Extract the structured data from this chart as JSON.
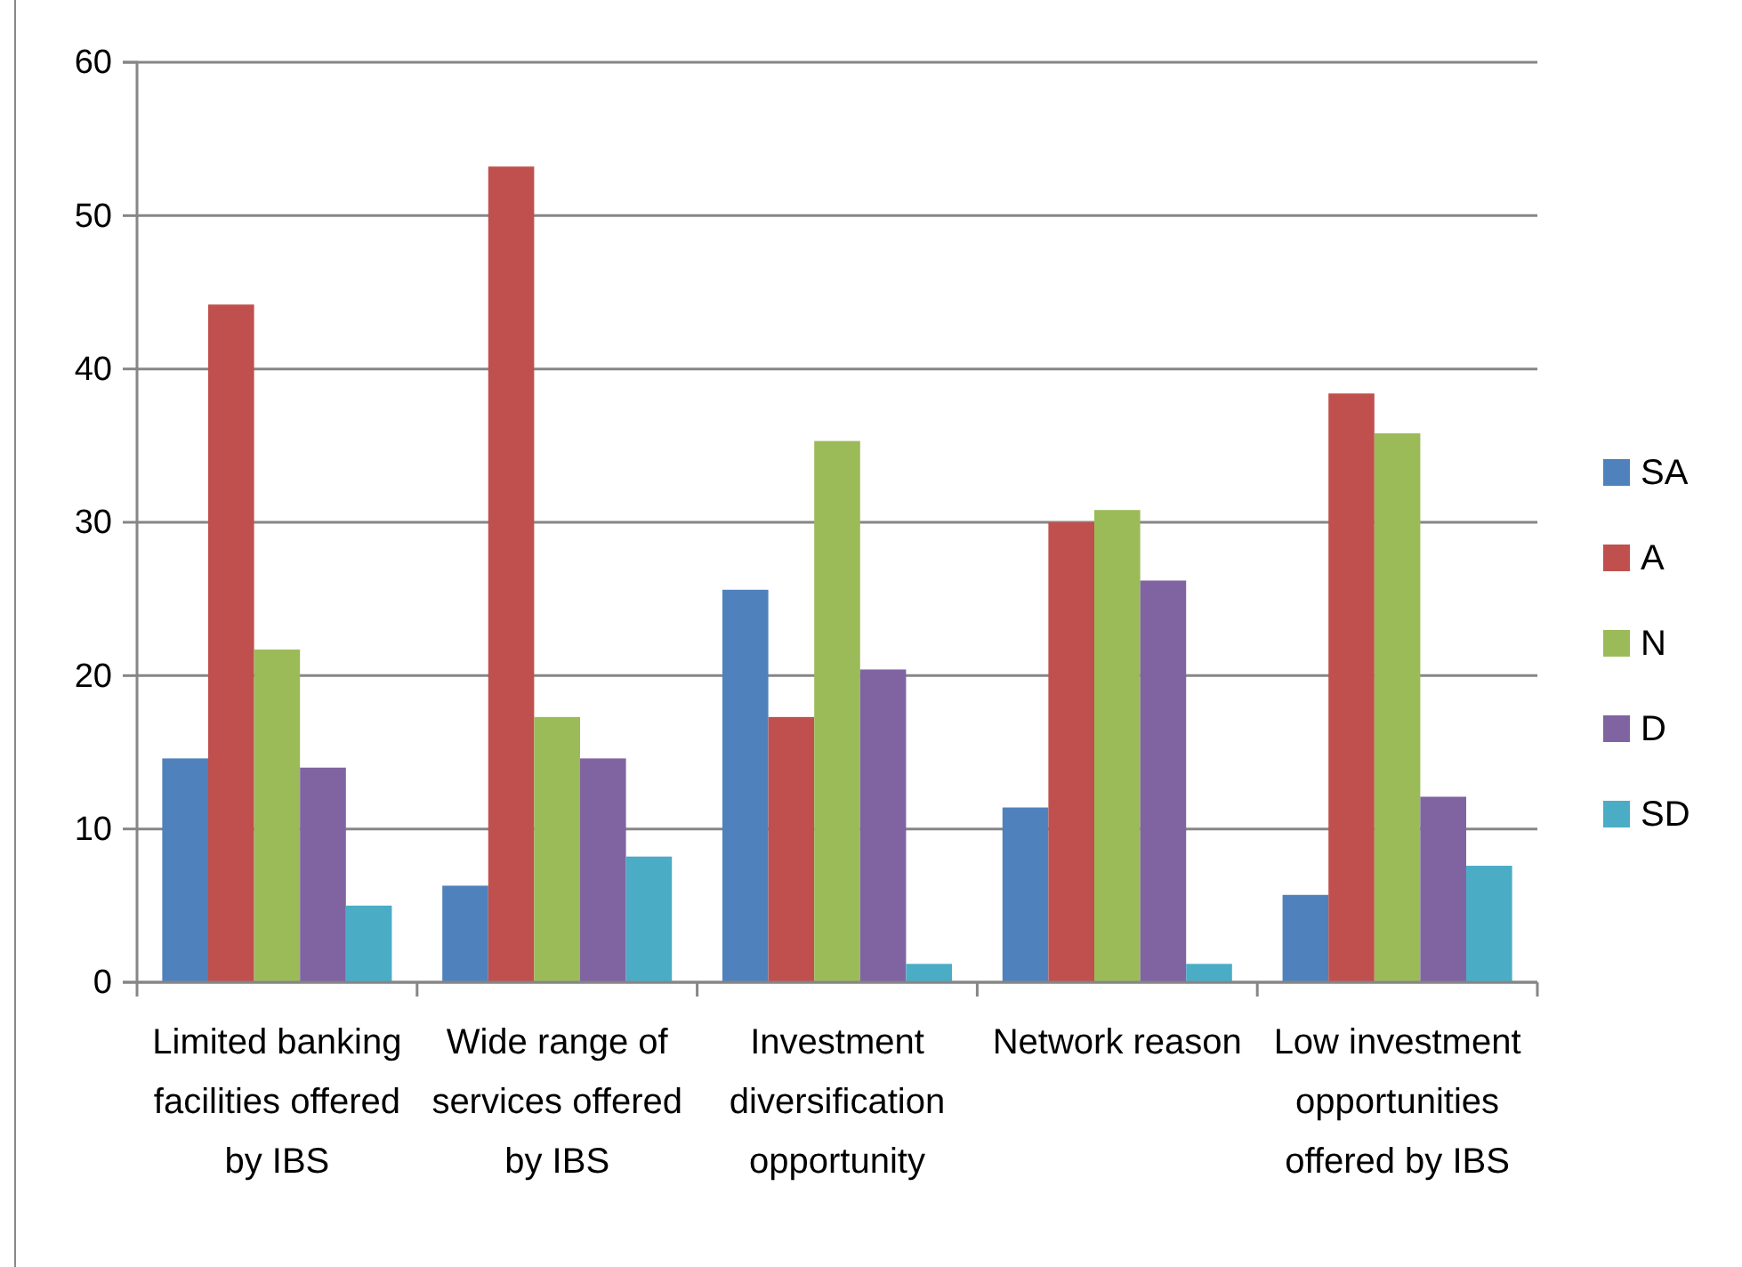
{
  "chart_data": {
    "type": "bar",
    "categories": [
      "Limited banking facilities offered by IBS",
      "Wide range of services offered by IBS",
      "Investment diversification opportunity",
      "Network reason",
      "Low investment opportunities offered by IBS"
    ],
    "series": [
      {
        "name": "SA",
        "color": "#4f81bd",
        "values": [
          14.6,
          6.3,
          25.6,
          11.4,
          5.7
        ]
      },
      {
        "name": "A",
        "color": "#c0504d",
        "values": [
          44.2,
          53.2,
          17.3,
          30.0,
          38.4
        ]
      },
      {
        "name": "N",
        "color": "#9bbb59",
        "values": [
          21.7,
          17.3,
          35.3,
          30.8,
          35.8
        ]
      },
      {
        "name": "D",
        "color": "#8064a2",
        "values": [
          14.0,
          14.6,
          20.4,
          26.2,
          12.1
        ]
      },
      {
        "name": "SD",
        "color": "#4bacc6",
        "values": [
          5.0,
          8.2,
          1.2,
          1.2,
          7.6
        ]
      }
    ],
    "ylim": [
      0,
      60
    ],
    "yticks": [
      0,
      10,
      20,
      30,
      40,
      50,
      60
    ],
    "grid": "y",
    "legend": "right"
  }
}
